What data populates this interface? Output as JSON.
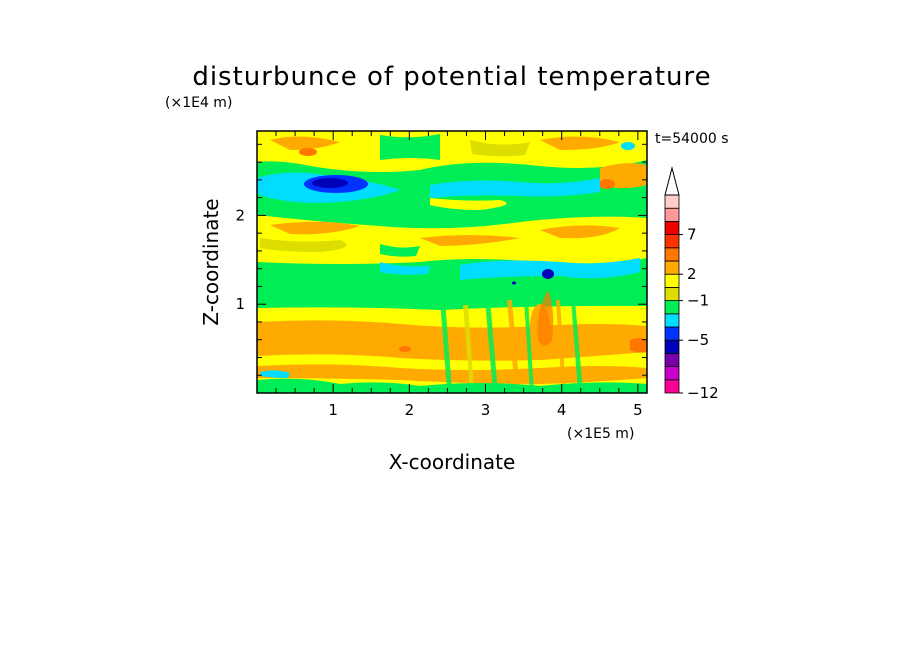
{
  "chart_data": {
    "type": "heatmap",
    "title": "disturbunce of potential temperature",
    "xlabel": "X-coordinate",
    "ylabel": "Z-coordinate",
    "x_unit": "(×1E5 m)",
    "y_unit": "(×1E4 m)",
    "time_label": "t=54000 s",
    "xlim": [
      0,
      5.12
    ],
    "ylim": [
      0,
      2.95
    ],
    "x_ticks": [
      "1",
      "2",
      "3",
      "4",
      "5"
    ],
    "y_ticks": [
      "1",
      "2"
    ],
    "colorbar": {
      "labels": [
        "7",
        "2",
        "−1",
        "−5",
        "−12"
      ],
      "colors": [
        "#ff0099",
        "#cc00cc",
        "#7700aa",
        "#0000bb",
        "#0033ff",
        "#00ddff",
        "#00ee55",
        "#dddd00",
        "#ffff00",
        "#ffaa00",
        "#ff7700",
        "#ff3300",
        "#ee0000",
        "#ff9999",
        "#ffcccc"
      ]
    },
    "bands_by_height": [
      {
        "z_range": [
          0,
          0.1
        ],
        "value": "mixed green/yellow"
      },
      {
        "z_range": [
          0.1,
          0.95
        ],
        "value": "yellow to orange (about 2 to 4)"
      },
      {
        "z_range": [
          0.95,
          1.35
        ],
        "value": "green (about 0 to -1)"
      },
      {
        "z_range": [
          1.35,
          1.75
        ],
        "value": "yellow/orange with cyan streaks"
      },
      {
        "z_range": [
          1.75,
          2.5
        ],
        "value": "cyan/green with blue minimum near x=0.8, z=2.4"
      },
      {
        "z_range": [
          2.5,
          2.95
        ],
        "value": "yellow/orange with green patches"
      }
    ]
  }
}
